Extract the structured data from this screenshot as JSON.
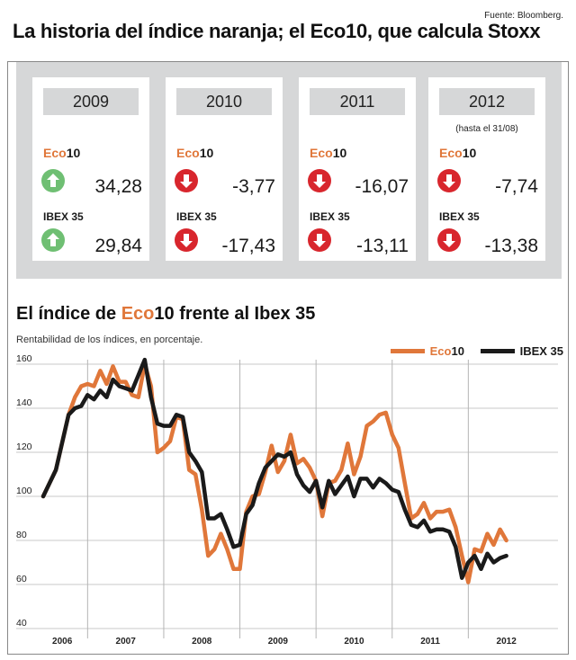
{
  "header": {
    "source": "Fuente: Bloomberg.",
    "title": "La historia del índice naranja; el Eco10, que calcula Stoxx"
  },
  "colors": {
    "eco": "#e0773a",
    "ibex": "#1a1a1a",
    "up": "#6fbf73",
    "down": "#d8262d",
    "panel": "#d6d7d8"
  },
  "cards": [
    {
      "year": "2009",
      "note": "",
      "eco_label_a": "Eco",
      "eco_label_b": "10",
      "ibex_label": "IBEX 35",
      "eco_value": "34,28",
      "eco_dir": "up",
      "ibex_value": "29,84",
      "ibex_dir": "up"
    },
    {
      "year": "2010",
      "note": "",
      "eco_label_a": "Eco",
      "eco_label_b": "10",
      "ibex_label": "IBEX 35",
      "eco_value": "-3,77",
      "eco_dir": "down",
      "ibex_value": "-17,43",
      "ibex_dir": "down"
    },
    {
      "year": "2011",
      "note": "",
      "eco_label_a": "Eco",
      "eco_label_b": "10",
      "ibex_label": "IBEX 35",
      "eco_value": "-16,07",
      "eco_dir": "down",
      "ibex_value": "-13,11",
      "ibex_dir": "down"
    },
    {
      "year": "2012",
      "note": "(hasta el 31/08)",
      "eco_label_a": "Eco",
      "eco_label_b": "10",
      "ibex_label": "IBEX 35",
      "eco_value": "-7,74",
      "eco_dir": "down",
      "ibex_value": "-13,38",
      "ibex_dir": "down"
    }
  ],
  "chart_section": {
    "title_a": "El índice de ",
    "title_eco": "Eco",
    "title_num": "10",
    "title_b": " frente al Ibex 35",
    "subtitle": "Rentabilidad de los índices, en porcentaje.",
    "legend_eco_a": "Eco",
    "legend_eco_b": "10",
    "legend_ibex": "IBEX 35"
  },
  "chart_data": {
    "type": "line",
    "xlabel": "",
    "ylabel": "",
    "ylim": [
      40,
      165
    ],
    "yticks": [
      40,
      60,
      80,
      100,
      120,
      140,
      160
    ],
    "xlim": [
      0,
      80
    ],
    "year_labels": [
      {
        "label": "2006",
        "x": 3
      },
      {
        "label": "2007",
        "x": 13
      },
      {
        "label": "2008",
        "x": 25
      },
      {
        "label": "2009",
        "x": 37
      },
      {
        "label": "2010",
        "x": 49
      },
      {
        "label": "2011",
        "x": 61
      },
      {
        "label": "2012",
        "x": 73
      }
    ],
    "year_boundaries": [
      7,
      19,
      31,
      43,
      55,
      67
    ],
    "grid": "vertical year dividers",
    "legend_position": "top-right",
    "series": [
      {
        "name": "Eco10",
        "x": [
          0,
          2,
          4,
          5,
          6,
          7,
          8,
          9,
          10,
          11,
          12,
          13,
          14,
          15,
          16,
          17,
          18,
          19,
          20,
          21,
          22,
          23,
          24,
          25,
          26,
          27,
          28,
          29,
          30,
          31,
          32,
          33,
          34,
          35,
          36,
          37,
          38,
          39,
          40,
          41,
          42,
          43,
          44,
          45,
          46,
          47,
          48,
          49,
          50,
          51,
          52,
          53,
          54,
          55,
          56,
          57,
          58,
          59,
          60,
          61,
          62,
          63,
          64,
          65,
          66,
          67,
          68,
          69,
          70,
          71,
          72,
          73
        ],
        "values": [
          100,
          112,
          137,
          145,
          150,
          151,
          150,
          157,
          151,
          159,
          152,
          152,
          146,
          145,
          160,
          150,
          120,
          122,
          125,
          136,
          135,
          112,
          110,
          94,
          73,
          76,
          83,
          76,
          67,
          67,
          93,
          100,
          101,
          111,
          123,
          111,
          116,
          128,
          115,
          117,
          113,
          107,
          91,
          106,
          107,
          112,
          124,
          110,
          118,
          132,
          134,
          137,
          138,
          128,
          122,
          106,
          90,
          92,
          97,
          90,
          93,
          93,
          94,
          86,
          73,
          61,
          76,
          75,
          83,
          78,
          85,
          80
        ],
        "color": "#e0773a"
      },
      {
        "name": "IBEX 35",
        "x": [
          0,
          2,
          4,
          5,
          6,
          7,
          8,
          9,
          10,
          11,
          12,
          13,
          14,
          15,
          16,
          17,
          18,
          19,
          20,
          21,
          22,
          23,
          24,
          25,
          26,
          27,
          28,
          29,
          30,
          31,
          32,
          33,
          34,
          35,
          36,
          37,
          38,
          39,
          40,
          41,
          42,
          43,
          44,
          45,
          46,
          47,
          48,
          49,
          50,
          51,
          52,
          53,
          54,
          55,
          56,
          57,
          58,
          59,
          60,
          61,
          62,
          63,
          64,
          65,
          66,
          67,
          68,
          69,
          70,
          71,
          72,
          73
        ],
        "values": [
          100,
          112,
          137,
          140,
          141,
          146,
          144,
          148,
          145,
          153,
          150,
          149,
          148,
          155,
          162,
          145,
          133,
          132,
          132,
          137,
          136,
          120,
          116,
          111,
          90,
          90,
          92,
          85,
          77,
          78,
          92,
          96,
          106,
          113,
          116,
          119,
          118,
          120,
          110,
          105,
          102,
          107,
          95,
          107,
          101,
          105,
          109,
          100,
          108,
          108,
          104,
          108,
          106,
          103,
          102,
          94,
          87,
          86,
          89,
          84,
          85,
          85,
          84,
          77,
          63,
          70,
          73,
          67,
          74,
          70,
          72,
          73
        ],
        "color": "#1a1a1a"
      }
    ]
  }
}
